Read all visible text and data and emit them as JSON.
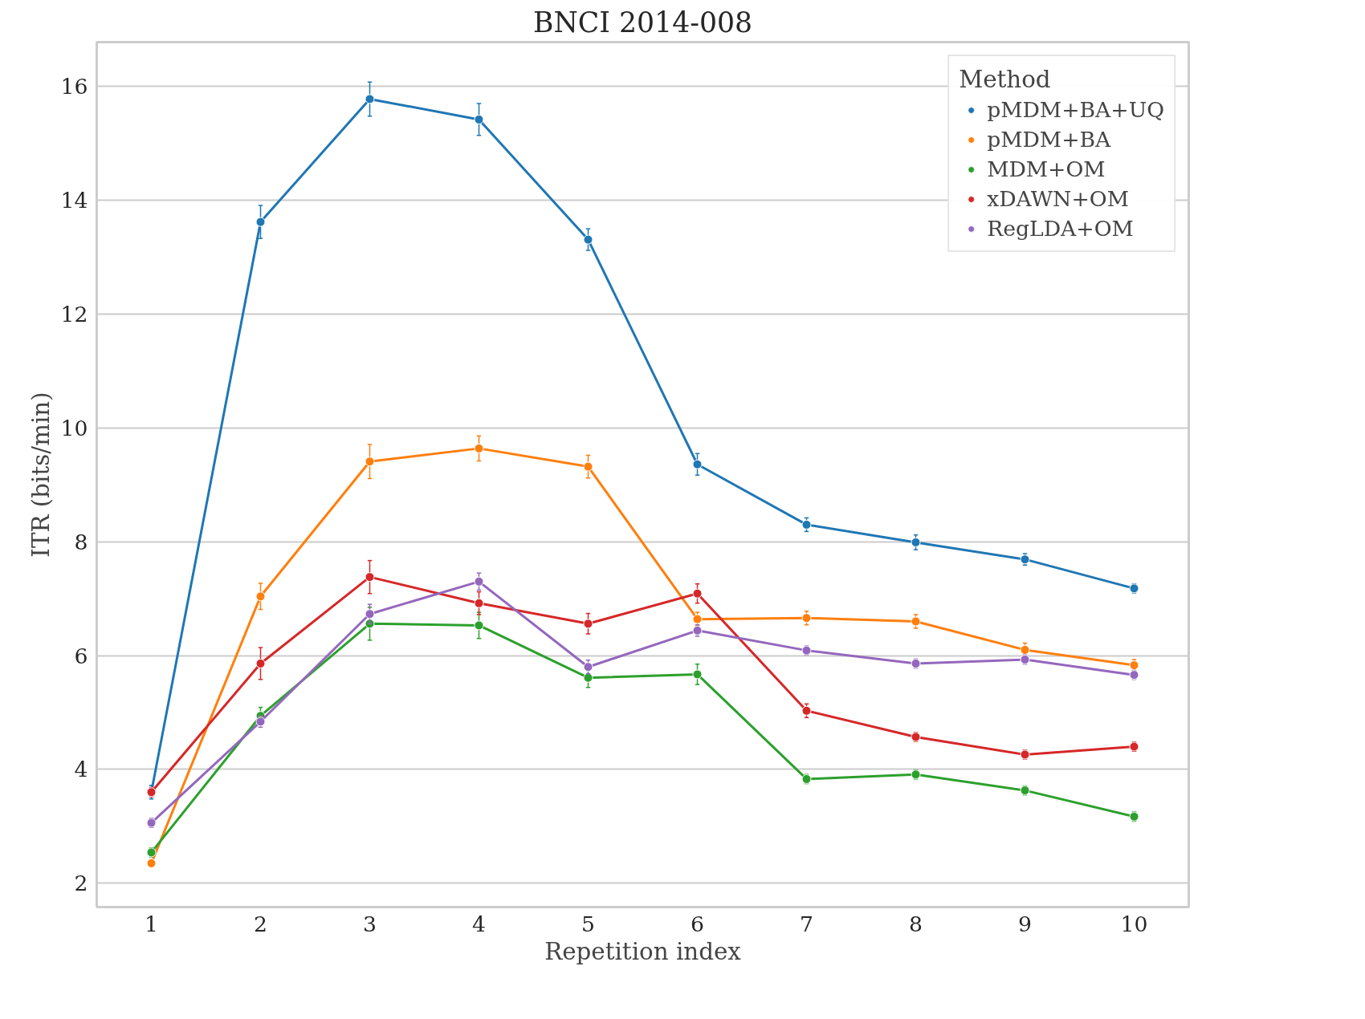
{
  "chart_data": {
    "type": "line",
    "title": "BNCI 2014-008",
    "xlabel": "Repetition index",
    "ylabel": "ITR (bits/min)",
    "legend_title": "Method",
    "legend": "top right",
    "grid": "y",
    "marker": "circle",
    "line_style": "solid",
    "categories": [
      "1",
      "2",
      "3",
      "4",
      "5",
      "6",
      "7",
      "8",
      "9",
      "10"
    ],
    "ylim": [
      1.58,
      16.78
    ],
    "yticks": [
      2,
      4,
      6,
      8,
      10,
      12,
      14,
      16
    ],
    "series": [
      {
        "name": "pMDM+BA+UQ",
        "color": "#1f77b4",
        "values": [
          3.6,
          13.62,
          15.78,
          15.42,
          13.31,
          9.36,
          8.3,
          7.99,
          7.69,
          7.18
        ],
        "errors": [
          0.12,
          0.29,
          0.3,
          0.28,
          0.19,
          0.19,
          0.12,
          0.13,
          0.1,
          0.08
        ]
      },
      {
        "name": "pMDM+BA",
        "color": "#ff7f0e",
        "values": [
          2.35,
          7.04,
          9.41,
          9.64,
          9.32,
          6.64,
          6.66,
          6.6,
          6.1,
          5.83
        ],
        "errors": [
          0.05,
          0.23,
          0.3,
          0.22,
          0.2,
          0.12,
          0.12,
          0.12,
          0.12,
          0.1
        ]
      },
      {
        "name": "MDM+OM",
        "color": "#2ca02c",
        "values": [
          2.54,
          4.94,
          6.56,
          6.53,
          5.61,
          5.67,
          3.83,
          3.91,
          3.63,
          3.17
        ],
        "errors": [
          0.08,
          0.15,
          0.29,
          0.23,
          0.17,
          0.18,
          0.08,
          0.08,
          0.08,
          0.08
        ]
      },
      {
        "name": "xDAWN+OM",
        "color": "#d62728",
        "values": [
          3.6,
          5.86,
          7.38,
          6.92,
          6.56,
          7.09,
          5.03,
          4.57,
          4.26,
          4.4
        ],
        "errors": [
          0.08,
          0.28,
          0.29,
          0.2,
          0.18,
          0.17,
          0.12,
          0.08,
          0.08,
          0.08
        ]
      },
      {
        "name": "RegLDA+OM",
        "color": "#9467bd",
        "values": [
          3.06,
          4.84,
          6.73,
          7.3,
          5.8,
          6.44,
          6.09,
          5.86,
          5.93,
          5.66
        ],
        "errors": [
          0.08,
          0.1,
          0.17,
          0.15,
          0.12,
          0.1,
          0.08,
          0.08,
          0.08,
          0.08
        ]
      }
    ]
  }
}
